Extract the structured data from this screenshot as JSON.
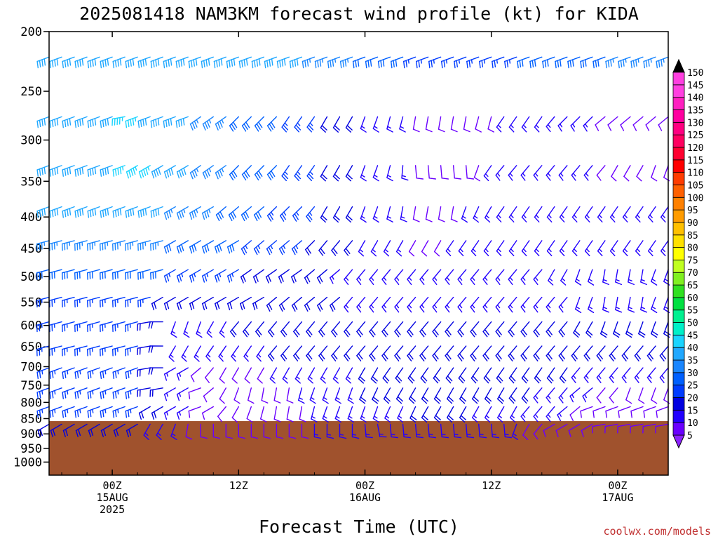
{
  "chart_data": {
    "type": "wind-barb-profile",
    "title": "2025081418 NAM3KM forecast wind profile (kt) for KIDA",
    "xlabel": "Forecast Time (UTC)",
    "credit": "coolwx.com/models",
    "y_axis": {
      "label": "",
      "scale": "log-pressure",
      "range": [
        1050,
        200
      ],
      "ticks": [
        200,
        250,
        300,
        350,
        400,
        450,
        500,
        550,
        600,
        650,
        700,
        750,
        800,
        850,
        900,
        950,
        1000
      ]
    },
    "x_axis": {
      "range_hours": [
        -5,
        44
      ],
      "ticks": [
        {
          "hour": 0,
          "lines": [
            "00Z",
            "15AUG",
            "2025"
          ]
        },
        {
          "hour": 10,
          "lines": [
            "12Z"
          ]
        },
        {
          "hour": 20,
          "lines": [
            "00Z",
            "16AUG"
          ]
        },
        {
          "hour": 30,
          "lines": [
            "12Z"
          ]
        },
        {
          "hour": 40,
          "lines": [
            "00Z",
            "17AUG"
          ]
        }
      ]
    },
    "levels": [
      220,
      275,
      330,
      385,
      437,
      487,
      540,
      592,
      648,
      703,
      758,
      813,
      868
    ],
    "forecast_hours": [
      -5,
      -4,
      -3,
      -2,
      -1,
      0,
      1,
      2,
      3,
      4,
      5,
      6,
      7,
      8,
      9,
      10,
      11,
      12,
      13,
      14,
      15,
      16,
      17,
      18,
      19,
      20,
      21,
      22,
      23,
      24,
      25,
      26,
      27,
      28,
      29,
      30,
      31,
      32,
      33,
      34,
      35,
      36,
      37,
      38,
      39,
      40,
      41,
      42,
      43,
      44
    ],
    "speed_kt": [
      [
        40,
        40,
        40,
        40,
        40,
        40,
        40,
        40,
        40,
        40,
        40,
        40,
        40,
        40,
        40,
        40,
        40,
        40,
        40,
        40,
        40,
        35,
        35,
        35,
        35,
        30,
        30,
        30,
        30,
        25,
        25,
        25,
        25,
        25,
        25,
        25,
        25,
        25,
        30,
        30,
        30,
        30,
        30,
        30,
        30,
        35,
        35,
        35,
        35,
        35
      ],
      [
        40,
        40,
        40,
        40,
        40,
        40,
        45,
        45,
        40,
        40,
        40,
        40,
        35,
        35,
        35,
        30,
        30,
        30,
        30,
        25,
        25,
        25,
        20,
        20,
        20,
        15,
        15,
        15,
        15,
        10,
        10,
        10,
        10,
        10,
        10,
        10,
        15,
        15,
        15,
        15,
        15,
        15,
        15,
        15,
        10,
        10,
        10,
        10,
        10,
        10
      ],
      [
        40,
        40,
        40,
        40,
        40,
        40,
        45,
        45,
        45,
        40,
        40,
        40,
        35,
        35,
        35,
        30,
        30,
        30,
        30,
        25,
        25,
        25,
        20,
        20,
        20,
        15,
        15,
        15,
        15,
        10,
        10,
        10,
        10,
        10,
        10,
        15,
        15,
        15,
        15,
        15,
        15,
        15,
        15,
        15,
        10,
        10,
        10,
        10,
        10,
        10
      ],
      [
        40,
        40,
        40,
        40,
        40,
        40,
        40,
        40,
        40,
        40,
        35,
        35,
        35,
        35,
        30,
        30,
        30,
        30,
        25,
        25,
        25,
        25,
        20,
        20,
        20,
        15,
        15,
        15,
        15,
        10,
        10,
        10,
        10,
        15,
        15,
        15,
        15,
        15,
        15,
        15,
        15,
        15,
        15,
        15,
        15,
        15,
        15,
        15,
        15,
        15
      ],
      [
        35,
        35,
        35,
        35,
        35,
        35,
        35,
        35,
        35,
        35,
        30,
        30,
        30,
        30,
        30,
        30,
        25,
        25,
        25,
        25,
        25,
        20,
        20,
        20,
        20,
        15,
        15,
        15,
        15,
        10,
        10,
        10,
        15,
        15,
        15,
        15,
        15,
        15,
        15,
        15,
        15,
        15,
        15,
        15,
        15,
        15,
        15,
        15,
        15,
        15
      ],
      [
        30,
        30,
        30,
        30,
        30,
        30,
        30,
        30,
        30,
        30,
        25,
        25,
        25,
        25,
        25,
        25,
        20,
        20,
        20,
        20,
        20,
        20,
        20,
        15,
        15,
        15,
        15,
        15,
        15,
        15,
        15,
        15,
        15,
        15,
        15,
        15,
        15,
        15,
        15,
        15,
        15,
        15,
        15,
        15,
        15,
        15,
        15,
        15,
        15,
        15
      ],
      [
        25,
        25,
        25,
        25,
        25,
        25,
        25,
        25,
        25,
        20,
        20,
        20,
        20,
        20,
        20,
        20,
        20,
        20,
        20,
        20,
        20,
        20,
        20,
        20,
        15,
        15,
        15,
        15,
        15,
        15,
        15,
        15,
        15,
        15,
        15,
        15,
        15,
        15,
        15,
        15,
        15,
        15,
        15,
        15,
        15,
        15,
        15,
        15,
        15,
        15
      ],
      [
        25,
        25,
        25,
        25,
        25,
        25,
        25,
        25,
        20,
        20,
        15,
        15,
        15,
        15,
        15,
        20,
        20,
        20,
        20,
        20,
        20,
        20,
        20,
        20,
        20,
        20,
        20,
        20,
        20,
        20,
        20,
        20,
        20,
        20,
        20,
        20,
        20,
        20,
        20,
        20,
        20,
        20,
        20,
        20,
        20,
        20,
        20,
        20,
        20,
        20
      ],
      [
        25,
        25,
        25,
        25,
        25,
        25,
        25,
        25,
        20,
        20,
        15,
        15,
        15,
        15,
        15,
        15,
        15,
        15,
        20,
        20,
        20,
        20,
        20,
        20,
        20,
        20,
        20,
        20,
        20,
        20,
        20,
        20,
        20,
        20,
        20,
        20,
        20,
        20,
        20,
        20,
        20,
        20,
        20,
        20,
        20,
        20,
        20,
        20,
        20,
        20
      ],
      [
        25,
        25,
        25,
        25,
        25,
        25,
        25,
        25,
        20,
        20,
        15,
        15,
        10,
        10,
        10,
        10,
        10,
        10,
        15,
        15,
        15,
        15,
        15,
        15,
        15,
        20,
        20,
        20,
        20,
        20,
        20,
        20,
        20,
        20,
        20,
        20,
        20,
        20,
        20,
        20,
        20,
        20,
        15,
        15,
        15,
        15,
        15,
        15,
        15,
        15
      ],
      [
        25,
        25,
        25,
        25,
        25,
        25,
        25,
        25,
        20,
        20,
        15,
        15,
        10,
        10,
        10,
        10,
        10,
        10,
        10,
        10,
        15,
        15,
        15,
        15,
        15,
        20,
        20,
        20,
        20,
        20,
        20,
        20,
        20,
        20,
        20,
        20,
        20,
        20,
        20,
        15,
        15,
        15,
        15,
        15,
        10,
        10,
        10,
        10,
        10,
        10
      ],
      [
        25,
        25,
        25,
        25,
        25,
        25,
        25,
        25,
        20,
        20,
        15,
        15,
        10,
        10,
        10,
        10,
        10,
        10,
        10,
        10,
        10,
        15,
        15,
        15,
        15,
        15,
        15,
        15,
        15,
        20,
        20,
        20,
        20,
        20,
        15,
        15,
        15,
        15,
        15,
        15,
        15,
        15,
        10,
        10,
        10,
        10,
        10,
        10,
        10,
        10
      ],
      [
        20,
        20,
        20,
        20,
        20,
        20,
        20,
        20,
        15,
        15,
        15,
        10,
        10,
        10,
        10,
        10,
        10,
        10,
        10,
        10,
        10,
        15,
        15,
        15,
        15,
        15,
        15,
        15,
        15,
        15,
        15,
        15,
        15,
        15,
        15,
        15,
        15,
        15,
        10,
        10,
        10,
        10,
        10,
        10,
        10,
        10,
        10,
        10,
        10,
        10
      ]
    ],
    "direction_deg": [
      [
        250,
        250,
        250,
        250,
        250,
        250,
        250,
        250,
        250,
        250,
        250,
        250,
        250,
        250,
        250,
        250,
        250,
        250,
        250,
        250,
        250,
        250,
        250,
        250,
        250,
        250,
        250,
        250,
        250,
        250,
        250,
        250,
        250,
        250,
        250,
        250,
        250,
        250,
        250,
        250,
        250,
        250,
        250,
        250,
        250,
        250,
        250,
        250,
        250,
        250
      ],
      [
        250,
        250,
        250,
        250,
        250,
        250,
        260,
        250,
        250,
        250,
        250,
        250,
        235,
        235,
        235,
        225,
        225,
        225,
        225,
        215,
        215,
        215,
        210,
        210,
        210,
        200,
        200,
        195,
        195,
        190,
        190,
        190,
        190,
        190,
        195,
        195,
        215,
        215,
        215,
        215,
        220,
        225,
        225,
        225,
        230,
        230,
        230,
        230,
        230,
        230
      ],
      [
        250,
        250,
        250,
        250,
        250,
        250,
        250,
        240,
        240,
        240,
        240,
        240,
        235,
        235,
        235,
        225,
        225,
        225,
        225,
        215,
        215,
        215,
        210,
        210,
        210,
        200,
        200,
        195,
        185,
        175,
        175,
        175,
        175,
        175,
        200,
        215,
        220,
        220,
        220,
        220,
        220,
        220,
        220,
        220,
        220,
        210,
        210,
        210,
        200,
        200
      ],
      [
        250,
        250,
        250,
        250,
        250,
        250,
        250,
        250,
        250,
        250,
        240,
        240,
        240,
        240,
        230,
        230,
        230,
        230,
        225,
        225,
        225,
        220,
        210,
        210,
        210,
        200,
        200,
        195,
        190,
        190,
        190,
        190,
        190,
        200,
        205,
        210,
        215,
        215,
        215,
        215,
        215,
        215,
        215,
        215,
        215,
        215,
        215,
        215,
        215,
        215
      ],
      [
        255,
        255,
        255,
        255,
        255,
        255,
        255,
        255,
        255,
        255,
        240,
        240,
        240,
        240,
        240,
        240,
        230,
        230,
        230,
        230,
        230,
        225,
        220,
        220,
        220,
        210,
        210,
        210,
        210,
        210,
        210,
        210,
        215,
        215,
        215,
        215,
        215,
        215,
        215,
        215,
        215,
        215,
        215,
        215,
        215,
        215,
        215,
        215,
        215,
        215
      ],
      [
        255,
        255,
        255,
        255,
        255,
        255,
        255,
        255,
        255,
        255,
        240,
        240,
        240,
        240,
        240,
        240,
        235,
        235,
        235,
        235,
        235,
        230,
        230,
        230,
        220,
        220,
        220,
        220,
        220,
        220,
        220,
        220,
        220,
        220,
        220,
        220,
        220,
        220,
        220,
        220,
        210,
        210,
        200,
        200,
        190,
        190,
        190,
        190,
        200,
        200
      ],
      [
        255,
        255,
        255,
        255,
        255,
        255,
        255,
        255,
        255,
        240,
        240,
        240,
        240,
        240,
        240,
        240,
        240,
        240,
        230,
        230,
        230,
        230,
        230,
        230,
        220,
        220,
        220,
        220,
        220,
        220,
        220,
        220,
        220,
        220,
        220,
        220,
        220,
        220,
        220,
        220,
        220,
        220,
        200,
        200,
        190,
        190,
        190,
        190,
        200,
        200
      ],
      [
        255,
        255,
        255,
        255,
        255,
        255,
        255,
        255,
        260,
        270,
        200,
        200,
        200,
        210,
        210,
        220,
        220,
        220,
        220,
        220,
        220,
        220,
        220,
        220,
        220,
        220,
        220,
        220,
        220,
        220,
        220,
        220,
        220,
        220,
        220,
        220,
        220,
        220,
        220,
        220,
        220,
        220,
        210,
        210,
        200,
        200,
        200,
        200,
        200,
        200
      ],
      [
        255,
        255,
        255,
        255,
        255,
        255,
        255,
        255,
        260,
        270,
        210,
        210,
        210,
        215,
        215,
        215,
        215,
        215,
        220,
        220,
        220,
        220,
        220,
        220,
        220,
        220,
        220,
        220,
        220,
        220,
        220,
        220,
        220,
        220,
        220,
        220,
        220,
        220,
        220,
        220,
        220,
        220,
        220,
        220,
        220,
        220,
        220,
        220,
        220,
        220
      ],
      [
        250,
        250,
        250,
        250,
        250,
        250,
        250,
        250,
        260,
        270,
        240,
        240,
        230,
        220,
        210,
        210,
        210,
        210,
        210,
        210,
        210,
        210,
        210,
        210,
        210,
        210,
        210,
        215,
        215,
        215,
        215,
        215,
        215,
        215,
        215,
        215,
        215,
        215,
        215,
        215,
        215,
        215,
        220,
        220,
        220,
        220,
        220,
        220,
        220,
        220
      ],
      [
        250,
        250,
        250,
        250,
        250,
        250,
        250,
        250,
        260,
        260,
        240,
        240,
        250,
        230,
        210,
        200,
        195,
        190,
        190,
        190,
        195,
        200,
        200,
        200,
        200,
        205,
        205,
        210,
        210,
        210,
        210,
        210,
        210,
        210,
        210,
        210,
        210,
        215,
        215,
        220,
        220,
        220,
        230,
        230,
        220,
        220,
        200,
        200,
        200,
        200
      ],
      [
        250,
        250,
        250,
        250,
        250,
        250,
        250,
        250,
        240,
        240,
        240,
        240,
        250,
        240,
        220,
        210,
        200,
        195,
        190,
        190,
        190,
        195,
        200,
        200,
        200,
        200,
        200,
        205,
        205,
        205,
        210,
        210,
        210,
        210,
        210,
        210,
        210,
        210,
        220,
        220,
        220,
        230,
        230,
        250,
        250,
        250,
        250,
        250,
        250,
        250
      ],
      [
        240,
        240,
        240,
        240,
        240,
        240,
        240,
        240,
        210,
        210,
        200,
        190,
        180,
        180,
        180,
        180,
        180,
        180,
        180,
        180,
        180,
        180,
        180,
        180,
        180,
        175,
        170,
        175,
        175,
        175,
        175,
        175,
        175,
        175,
        175,
        175,
        175,
        200,
        210,
        220,
        240,
        240,
        240,
        240,
        260,
        260,
        260,
        260,
        260,
        260
      ]
    ],
    "terrain": {
      "color": "#a0522d",
      "below_hpa": 858
    },
    "colorbar": {
      "labels": [
        5,
        10,
        15,
        20,
        25,
        30,
        35,
        40,
        45,
        50,
        55,
        60,
        65,
        70,
        75,
        80,
        85,
        90,
        95,
        100,
        105,
        110,
        115,
        120,
        125,
        130,
        135,
        140,
        145,
        150
      ],
      "colors": [
        "#8c22ff",
        "#6a00ff",
        "#2200ff",
        "#0000e0",
        "#003cff",
        "#0060ff",
        "#1a86ff",
        "#20a8ff",
        "#1ad4ff",
        "#00f0c8",
        "#00f090",
        "#00e040",
        "#30e020",
        "#80f020",
        "#c0ff20",
        "#ffff00",
        "#ffe000",
        "#ffc000",
        "#ff9c00",
        "#ff8000",
        "#ff6000",
        "#ff3c00",
        "#ff0000",
        "#ff0030",
        "#ff0060",
        "#ff0080",
        "#ff00a0",
        "#ff20c0",
        "#ff40e0",
        "#000000"
      ]
    }
  }
}
